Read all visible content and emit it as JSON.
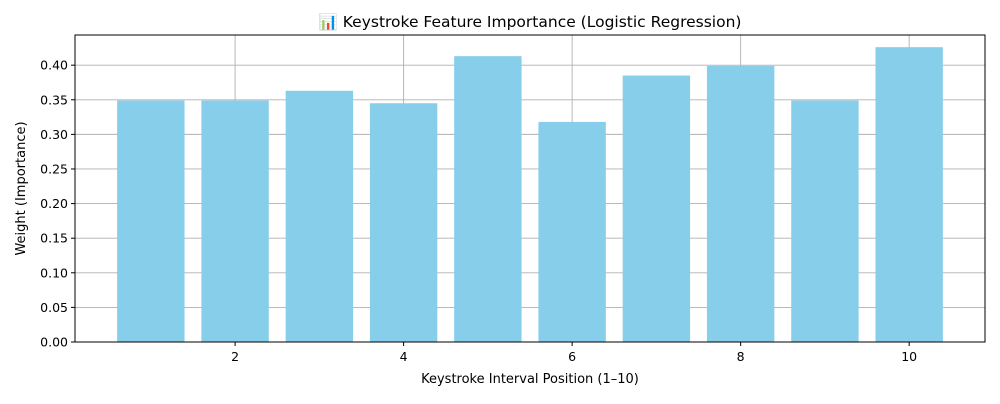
{
  "chart_data": {
    "type": "bar",
    "title": "📊 Keystroke Feature Importance (Logistic Regression)",
    "xlabel": "Keystroke Interval Position (1–10)",
    "ylabel": "Weight (Importance)",
    "x": [
      1,
      2,
      3,
      4,
      5,
      6,
      7,
      8,
      9,
      10
    ],
    "values": [
      0.349,
      0.349,
      0.363,
      0.345,
      0.413,
      0.318,
      0.385,
      0.399,
      0.349,
      0.426
    ],
    "x_ticks": [
      2,
      4,
      6,
      8,
      10
    ],
    "y_ticks": [
      "0.00",
      "0.05",
      "0.10",
      "0.15",
      "0.20",
      "0.25",
      "0.30",
      "0.35",
      "0.40"
    ],
    "xlim": [
      0.1,
      10.9
    ],
    "ylim": [
      0,
      0.4436
    ],
    "grid": true,
    "bar_color": "#87ceeb"
  }
}
